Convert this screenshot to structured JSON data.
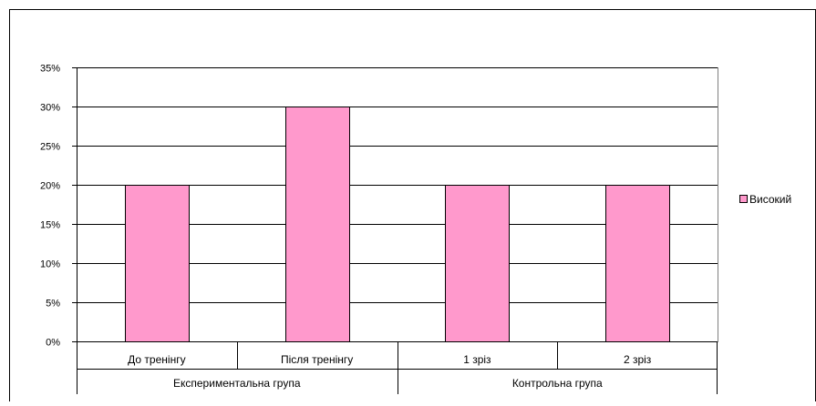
{
  "chart_data": {
    "type": "bar",
    "groups": [
      {
        "name": "Експериментальна група",
        "categories": [
          "До тренінгу",
          "Після тренінгу"
        ]
      },
      {
        "name": "Контрольна група",
        "categories": [
          "1 зріз",
          "2 зріз"
        ]
      }
    ],
    "categories": [
      "До тренінгу",
      "Після тренінгу",
      "1 зріз",
      "2 зріз"
    ],
    "series": [
      {
        "name": "Високий",
        "values": [
          20,
          30,
          20,
          20
        ],
        "color": "#ff99cc"
      }
    ],
    "yticks": [
      "0%",
      "5%",
      "10%",
      "15%",
      "20%",
      "25%",
      "30%",
      "35%"
    ],
    "ylim": [
      0,
      35
    ],
    "grid": true,
    "legend_position": "right"
  }
}
